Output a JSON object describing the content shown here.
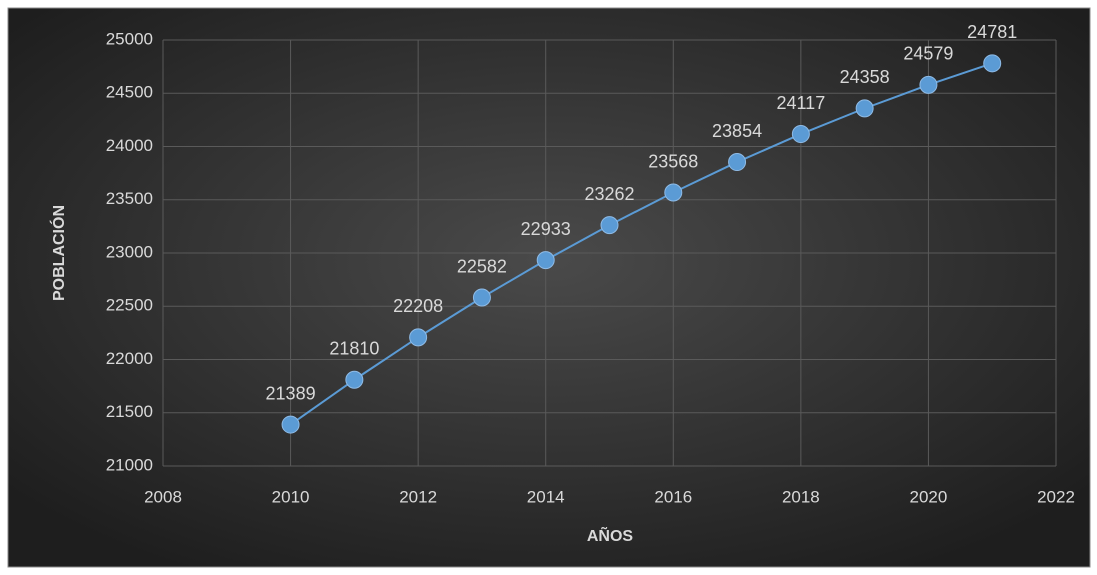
{
  "chart_data": {
    "type": "line",
    "x_label": "AÑOS",
    "y_label": "POBLACIÓN",
    "x": [
      2010,
      2011,
      2012,
      2013,
      2014,
      2015,
      2016,
      2017,
      2018,
      2019,
      2020,
      2021
    ],
    "series": [
      {
        "name": "POBLACIÓN",
        "color": "#5b9bd5",
        "values": [
          21389,
          21810,
          22208,
          22582,
          22933,
          23262,
          23568,
          23854,
          24117,
          24358,
          24579,
          24781
        ]
      }
    ],
    "xlim": [
      2008,
      2022
    ],
    "xticks": [
      2008,
      2010,
      2012,
      2014,
      2016,
      2018,
      2020,
      2022
    ],
    "ylim": [
      21000,
      25000
    ],
    "yticks": [
      21000,
      21500,
      22000,
      22500,
      23000,
      23500,
      24000,
      24500,
      25000
    ],
    "grid": true,
    "data_labels": true
  }
}
